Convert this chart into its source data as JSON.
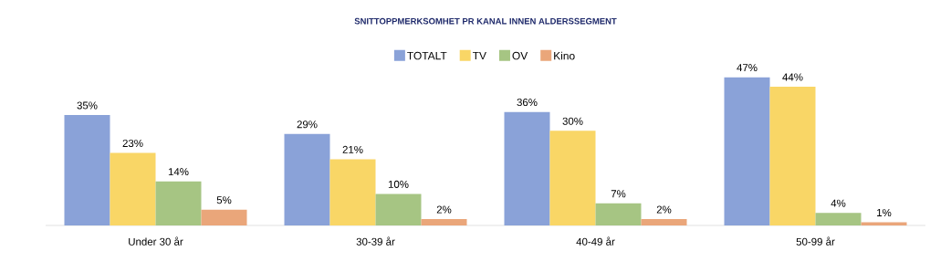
{
  "chart_data": {
    "type": "bar",
    "title": "SNITTOPPMERKSOMHET PR KANAL INNEN ALDERSSEGMENT",
    "categories": [
      "Under 30 år",
      "30-39 år",
      "40-49 år",
      "50-99 år"
    ],
    "series": [
      {
        "name": "TOTALT",
        "color": "#8aa2d8",
        "values": [
          35,
          29,
          36,
          47
        ],
        "value_labels": [
          "35%",
          "29%",
          "36%",
          "47%"
        ]
      },
      {
        "name": "TV",
        "color": "#f9d666",
        "values": [
          23,
          21,
          30,
          44
        ],
        "value_labels": [
          "23%",
          "21%",
          "30%",
          "44%"
        ]
      },
      {
        "name": "OV",
        "color": "#a6c583",
        "values": [
          14,
          10,
          7,
          4
        ],
        "value_labels": [
          "14%",
          "10%",
          "7%",
          "4%"
        ]
      },
      {
        "name": "Kino",
        "color": "#eaa67a",
        "values": [
          5,
          2,
          2,
          1
        ],
        "value_labels": [
          "5%",
          "2%",
          "2%",
          "1%"
        ]
      }
    ],
    "ylim": [
      0,
      55
    ],
    "tick_labels": "x",
    "legend": "top"
  }
}
